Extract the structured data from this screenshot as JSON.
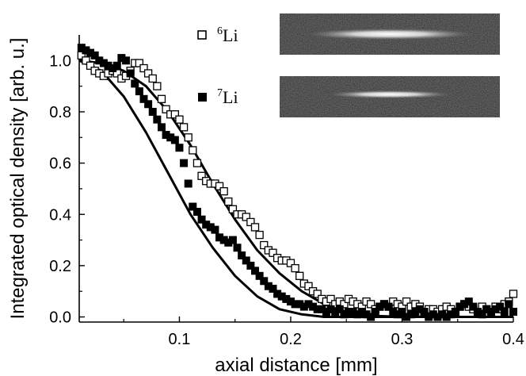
{
  "chart_data": {
    "type": "scatter",
    "title": "",
    "xlabel": "axial distance [mm]",
    "ylabel": "Integrated optical density [arb. u.]",
    "xlim": [
      0.01,
      0.4
    ],
    "ylim": [
      -0.02,
      1.1
    ],
    "x_ticks": [
      0.1,
      0.2,
      0.3,
      0.4
    ],
    "x_tick_labels": [
      "0.1",
      "0.2",
      "0.3",
      "0.4"
    ],
    "y_ticks": [
      0.0,
      0.2,
      0.4,
      0.6,
      0.8,
      1.0
    ],
    "y_tick_labels": [
      "0.0",
      "0.2",
      "0.4",
      "0.6",
      "0.8",
      "1.0"
    ],
    "grid": false,
    "legend_placement": "top-center",
    "series": [
      {
        "name": "6Li",
        "legend_mass": "6",
        "legend_element": "Li",
        "marker": "open-square",
        "points": [
          [
            0.012,
            1.02
          ],
          [
            0.016,
            1.0
          ],
          [
            0.02,
            0.98
          ],
          [
            0.024,
            0.96
          ],
          [
            0.028,
            0.95
          ],
          [
            0.032,
            0.94
          ],
          [
            0.036,
            0.95
          ],
          [
            0.04,
            0.96
          ],
          [
            0.044,
            0.95
          ],
          [
            0.048,
            0.93
          ],
          [
            0.052,
            0.94
          ],
          [
            0.056,
            0.96
          ],
          [
            0.06,
            0.99
          ],
          [
            0.064,
            0.99
          ],
          [
            0.068,
            0.97
          ],
          [
            0.072,
            0.95
          ],
          [
            0.076,
            0.93
          ],
          [
            0.08,
            0.9
          ],
          [
            0.084,
            0.85
          ],
          [
            0.088,
            0.81
          ],
          [
            0.092,
            0.79
          ],
          [
            0.096,
            0.79
          ],
          [
            0.1,
            0.77
          ],
          [
            0.104,
            0.74
          ],
          [
            0.108,
            0.7
          ],
          [
            0.112,
            0.65
          ],
          [
            0.116,
            0.6
          ],
          [
            0.12,
            0.55
          ],
          [
            0.124,
            0.53
          ],
          [
            0.128,
            0.52
          ],
          [
            0.132,
            0.52
          ],
          [
            0.136,
            0.51
          ],
          [
            0.14,
            0.49
          ],
          [
            0.144,
            0.45
          ],
          [
            0.148,
            0.42
          ],
          [
            0.152,
            0.4
          ],
          [
            0.156,
            0.4
          ],
          [
            0.16,
            0.39
          ],
          [
            0.164,
            0.37
          ],
          [
            0.168,
            0.35
          ],
          [
            0.172,
            0.32
          ],
          [
            0.176,
            0.28
          ],
          [
            0.18,
            0.26
          ],
          [
            0.184,
            0.25
          ],
          [
            0.188,
            0.23
          ],
          [
            0.192,
            0.22
          ],
          [
            0.196,
            0.22
          ],
          [
            0.2,
            0.21
          ],
          [
            0.204,
            0.19
          ],
          [
            0.208,
            0.16
          ],
          [
            0.212,
            0.13
          ],
          [
            0.216,
            0.12
          ],
          [
            0.22,
            0.1
          ],
          [
            0.224,
            0.09
          ],
          [
            0.228,
            0.07
          ],
          [
            0.232,
            0.06
          ],
          [
            0.236,
            0.07
          ],
          [
            0.24,
            0.05
          ],
          [
            0.244,
            0.06
          ],
          [
            0.248,
            0.05
          ],
          [
            0.252,
            0.07
          ],
          [
            0.256,
            0.06
          ],
          [
            0.26,
            0.05
          ],
          [
            0.264,
            0.04
          ],
          [
            0.268,
            0.06
          ],
          [
            0.272,
            0.05
          ],
          [
            0.276,
            0.03
          ],
          [
            0.28,
            0.04
          ],
          [
            0.284,
            0.05
          ],
          [
            0.288,
            0.04
          ],
          [
            0.292,
            0.06
          ],
          [
            0.296,
            0.05
          ],
          [
            0.3,
            0.04
          ],
          [
            0.304,
            0.06
          ],
          [
            0.308,
            0.04
          ],
          [
            0.312,
            0.05
          ],
          [
            0.316,
            0.04
          ],
          [
            0.32,
            0.02
          ],
          [
            0.324,
            0.03
          ],
          [
            0.328,
            0.03
          ],
          [
            0.332,
            0.02
          ],
          [
            0.336,
            0.03
          ],
          [
            0.34,
            0.04
          ],
          [
            0.344,
            0.03
          ],
          [
            0.348,
            0.02
          ],
          [
            0.352,
            0.04
          ],
          [
            0.356,
            0.05
          ],
          [
            0.36,
            0.04
          ],
          [
            0.364,
            0.03
          ],
          [
            0.368,
            0.02
          ],
          [
            0.372,
            0.04
          ],
          [
            0.376,
            0.03
          ],
          [
            0.38,
            0.02
          ],
          [
            0.384,
            0.04
          ],
          [
            0.388,
            0.03
          ],
          [
            0.392,
            0.05
          ],
          [
            0.396,
            0.06
          ],
          [
            0.4,
            0.09
          ]
        ]
      },
      {
        "name": "7Li",
        "legend_mass": "7",
        "legend_element": "Li",
        "marker": "filled-square",
        "points": [
          [
            0.012,
            1.05
          ],
          [
            0.016,
            1.04
          ],
          [
            0.02,
            1.03
          ],
          [
            0.024,
            1.02
          ],
          [
            0.028,
            1.0
          ],
          [
            0.032,
            0.99
          ],
          [
            0.036,
            0.98
          ],
          [
            0.04,
            0.97
          ],
          [
            0.044,
            0.98
          ],
          [
            0.048,
            1.01
          ],
          [
            0.052,
            1.0
          ],
          [
            0.056,
            0.95
          ],
          [
            0.06,
            0.91
          ],
          [
            0.064,
            0.88
          ],
          [
            0.068,
            0.85
          ],
          [
            0.072,
            0.83
          ],
          [
            0.076,
            0.8
          ],
          [
            0.08,
            0.77
          ],
          [
            0.084,
            0.74
          ],
          [
            0.088,
            0.71
          ],
          [
            0.092,
            0.7
          ],
          [
            0.096,
            0.69
          ],
          [
            0.1,
            0.66
          ],
          [
            0.104,
            0.6
          ],
          [
            0.108,
            0.52
          ],
          [
            0.112,
            0.43
          ],
          [
            0.116,
            0.41
          ],
          [
            0.12,
            0.38
          ],
          [
            0.124,
            0.36
          ],
          [
            0.128,
            0.35
          ],
          [
            0.132,
            0.34
          ],
          [
            0.136,
            0.31
          ],
          [
            0.14,
            0.3
          ],
          [
            0.144,
            0.29
          ],
          [
            0.148,
            0.3
          ],
          [
            0.152,
            0.27
          ],
          [
            0.156,
            0.24
          ],
          [
            0.16,
            0.22
          ],
          [
            0.164,
            0.2
          ],
          [
            0.168,
            0.18
          ],
          [
            0.172,
            0.16
          ],
          [
            0.176,
            0.14
          ],
          [
            0.18,
            0.12
          ],
          [
            0.184,
            0.11
          ],
          [
            0.188,
            0.09
          ],
          [
            0.192,
            0.08
          ],
          [
            0.196,
            0.07
          ],
          [
            0.2,
            0.06
          ],
          [
            0.204,
            0.05
          ],
          [
            0.208,
            0.05
          ],
          [
            0.212,
            0.04
          ],
          [
            0.216,
            0.05
          ],
          [
            0.22,
            0.04
          ],
          [
            0.224,
            0.03
          ],
          [
            0.228,
            0.03
          ],
          [
            0.232,
            0.02
          ],
          [
            0.236,
            0.03
          ],
          [
            0.24,
            0.02
          ],
          [
            0.244,
            0.03
          ],
          [
            0.248,
            0.01
          ],
          [
            0.252,
            0.02
          ],
          [
            0.256,
            0.02
          ],
          [
            0.26,
            0.01
          ],
          [
            0.264,
            0.02
          ],
          [
            0.268,
            0.01
          ],
          [
            0.272,
            0.0
          ],
          [
            0.276,
            0.02
          ],
          [
            0.28,
            0.04
          ],
          [
            0.284,
            0.05
          ],
          [
            0.288,
            0.04
          ],
          [
            0.292,
            0.02
          ],
          [
            0.296,
            0.01
          ],
          [
            0.3,
            0.02
          ],
          [
            0.304,
            0.0
          ],
          [
            0.308,
            0.01
          ],
          [
            0.312,
            0.02
          ],
          [
            0.316,
            0.03
          ],
          [
            0.32,
            0.02
          ],
          [
            0.324,
            0.0
          ],
          [
            0.328,
            0.01
          ],
          [
            0.332,
            0.0
          ],
          [
            0.336,
            0.01
          ],
          [
            0.34,
            0.0
          ],
          [
            0.344,
            0.01
          ],
          [
            0.348,
            0.02
          ],
          [
            0.352,
            0.04
          ],
          [
            0.356,
            0.05
          ],
          [
            0.36,
            0.06
          ],
          [
            0.364,
            0.04
          ],
          [
            0.368,
            0.02
          ],
          [
            0.372,
            0.01
          ],
          [
            0.376,
            0.03
          ],
          [
            0.38,
            0.02
          ],
          [
            0.384,
            0.03
          ],
          [
            0.388,
            0.04
          ],
          [
            0.392,
            0.02
          ],
          [
            0.396,
            0.05
          ],
          [
            0.4,
            0.02
          ]
        ]
      }
    ],
    "fits": [
      {
        "for_series": "6Li",
        "x": [
          0.01,
          0.03,
          0.05,
          0.07,
          0.09,
          0.11,
          0.13,
          0.15,
          0.17,
          0.19,
          0.21,
          0.23,
          0.25,
          0.27,
          0.3,
          0.35,
          0.4
        ],
        "y": [
          1.0,
          0.99,
          0.96,
          0.9,
          0.8,
          0.67,
          0.52,
          0.38,
          0.26,
          0.17,
          0.1,
          0.05,
          0.02,
          0.005,
          0.0,
          0.0,
          0.0
        ]
      },
      {
        "for_series": "7Li",
        "x": [
          0.01,
          0.03,
          0.05,
          0.07,
          0.09,
          0.11,
          0.13,
          0.15,
          0.17,
          0.19,
          0.21,
          0.23,
          0.25,
          0.3,
          0.35,
          0.4
        ],
        "y": [
          1.0,
          0.96,
          0.86,
          0.72,
          0.56,
          0.4,
          0.27,
          0.16,
          0.08,
          0.03,
          0.01,
          0.0,
          0.0,
          0.0,
          0.0,
          0.0
        ]
      }
    ],
    "insets": [
      {
        "for_series": "6Li",
        "kind": "absorption-image",
        "width_fraction": 0.75
      },
      {
        "for_series": "7Li",
        "kind": "absorption-image",
        "width_fraction": 0.55
      }
    ]
  },
  "colors": {
    "axis": "#000000",
    "open_marker_fill": "#ffffff",
    "filled_marker": "#000000",
    "image_background": "#2b2b2b",
    "cloud_core": "#ffffff"
  }
}
